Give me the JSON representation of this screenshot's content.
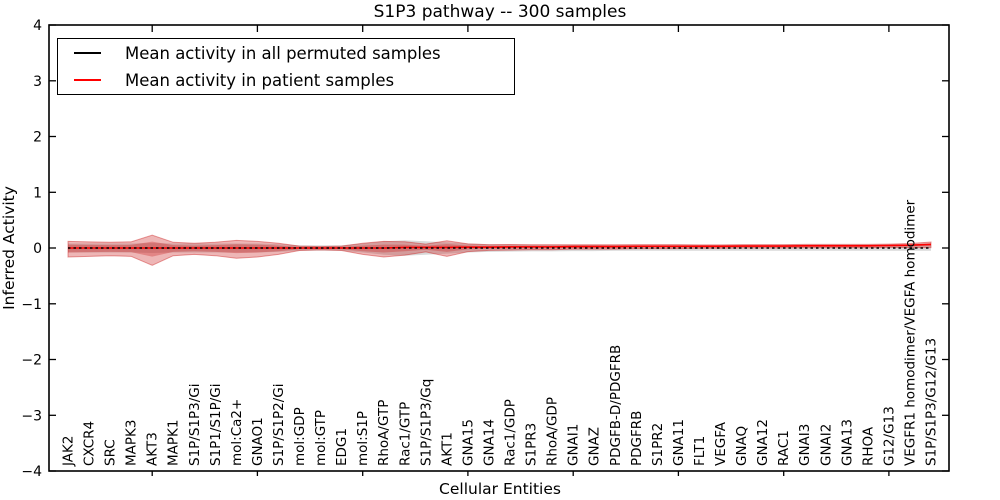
{
  "chart_data": {
    "type": "line",
    "title": "S1P3 pathway -- 300 samples",
    "xlabel": "Cellular Entities",
    "ylabel": "Inferred Activity",
    "ylim": [
      -4,
      4
    ],
    "yticks": [
      4,
      3,
      2,
      1,
      0,
      -1,
      -2,
      -3,
      -4
    ],
    "grid": false,
    "legend_position": "upper left",
    "categories": [
      "JAK2",
      "CXCR4",
      "SRC",
      "MAPK3",
      "AKT3",
      "MAPK1",
      "S1P/S1P3/Gi",
      "S1P1/S1P/Gi",
      "mol:Ca2+",
      "GNAO1",
      "S1P/S1P2/Gi",
      "mol:GDP",
      "mol:GTP",
      "EDG1",
      "mol:S1P",
      "RhoA/GTP",
      "Rac1/GTP",
      "S1P/S1P3/Gq",
      "AKT1",
      "GNA15",
      "GNA14",
      "Rac1/GDP",
      "S1PR3",
      "RhoA/GDP",
      "GNAI1",
      "GNAZ",
      "PDGFB-D/PDGFRB",
      "PDGFRB",
      "S1PR2",
      "GNA11",
      "FLT1",
      "VEGFA",
      "GNAQ",
      "GNA12",
      "RAC1",
      "GNAI3",
      "GNAI2",
      "GNA13",
      "RHOA",
      "G12/G13",
      "VEGFR1 homodimer/VEGFA homodimer",
      "S1P/S1P3/G12/G13"
    ],
    "xtick_indices": [
      4,
      9,
      14,
      19,
      24,
      29,
      34,
      39
    ],
    "series": [
      {
        "name": "Mean activity in all permuted samples",
        "color": "#000000",
        "line_style": "dotted",
        "values": [
          0,
          0,
          0,
          0,
          0,
          0,
          0,
          0,
          0,
          0,
          0,
          0,
          0,
          0,
          0,
          0,
          0,
          0,
          0,
          0,
          0,
          0,
          0,
          0,
          0,
          0,
          0,
          0,
          0,
          0,
          0,
          0,
          0,
          0,
          0,
          0,
          0,
          0,
          0,
          0,
          0,
          0
        ],
        "band_halfwidth": [
          0.08,
          0.08,
          0.08,
          0.08,
          0.09,
          0.08,
          0.08,
          0.08,
          0.08,
          0.08,
          0.07,
          0.05,
          0.05,
          0.05,
          0.08,
          0.12,
          0.14,
          0.12,
          0.1,
          0.08,
          0.07,
          0.065,
          0.06,
          0.06,
          0.055,
          0.055,
          0.05,
          0.05,
          0.05,
          0.05,
          0.05,
          0.05,
          0.05,
          0.05,
          0.05,
          0.05,
          0.05,
          0.05,
          0.05,
          0.05,
          0.05,
          0.05
        ],
        "band_color": "#000000",
        "band_opacity": 0.15
      },
      {
        "name": "Mean activity in patient samples",
        "color": "#ff0000",
        "line_style": "solid",
        "values": [
          0,
          0,
          0,
          0,
          0,
          0,
          0,
          0,
          0,
          0,
          0,
          0,
          0,
          0,
          0,
          0,
          0.01,
          0.01,
          0.01,
          0.015,
          0.015,
          0.02,
          0.02,
          0.02,
          0.025,
          0.025,
          0.025,
          0.03,
          0.03,
          0.03,
          0.03,
          0.03,
          0.035,
          0.035,
          0.035,
          0.04,
          0.04,
          0.04,
          0.04,
          0.045,
          0.05,
          0.065
        ],
        "band_halfwidth": [
          0.14,
          0.13,
          0.12,
          0.13,
          0.27,
          0.12,
          0.1,
          0.12,
          0.16,
          0.14,
          0.1,
          0.04,
          0.03,
          0.04,
          0.1,
          0.14,
          0.12,
          0.07,
          0.14,
          0.07,
          0.05,
          0.05,
          0.045,
          0.045,
          0.04,
          0.04,
          0.04,
          0.035,
          0.035,
          0.035,
          0.03,
          0.03,
          0.03,
          0.03,
          0.03,
          0.03,
          0.03,
          0.03,
          0.03,
          0.03,
          0.035,
          0.05
        ],
        "band_color": "#cc2222",
        "band_opacity": 0.33
      }
    ]
  }
}
